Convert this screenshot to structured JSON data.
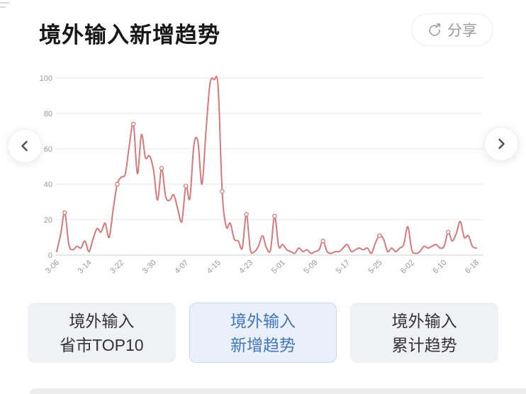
{
  "page": {
    "title": "境外输入新增趋势",
    "share_label": "分享"
  },
  "icons": {
    "share": "circular-arrow-share-icon",
    "prev": "chevron-left-icon",
    "next": "chevron-right-icon"
  },
  "colors": {
    "line": "#d4797c",
    "title_text": "#171717",
    "share_text": "#9b9b9b",
    "grid_line": "#e9e9e9",
    "axis_line": "#cccccc",
    "axis_label": "#999999",
    "tab_bg": "#eff1f4",
    "tab_text": "#333333",
    "selected_tab_bg": "#e9effb",
    "selected_tab_text": "#4377b8",
    "selected_tab_border": "#c9d7f0"
  },
  "chart_data": {
    "type": "line",
    "title": "境外输入新增趋势",
    "ylim": [
      0,
      100
    ],
    "y_ticks": [
      0,
      20,
      40,
      60,
      80,
      100
    ],
    "x_tick_every": 8,
    "x_tick_labels": [
      "3-06",
      "3-14",
      "3-22",
      "3-30",
      "4-07",
      "4-15",
      "4-23",
      "5-01",
      "5-09",
      "5-17",
      "5-25",
      "6-02",
      "6-10",
      "6-18"
    ],
    "grid": true,
    "legend": "none",
    "line_color": "#d4797c",
    "marker_indices": [
      2,
      15,
      19,
      26,
      32,
      41,
      47,
      54,
      66,
      80,
      97
    ],
    "x": [
      "3-06",
      "3-07",
      "3-08",
      "3-09",
      "3-10",
      "3-11",
      "3-12",
      "3-13",
      "3-14",
      "3-15",
      "3-16",
      "3-17",
      "3-18",
      "3-19",
      "3-20",
      "3-21",
      "3-22",
      "3-23",
      "3-24",
      "3-25",
      "3-26",
      "3-27",
      "3-28",
      "3-29",
      "3-30",
      "3-31",
      "4-01",
      "4-02",
      "4-03",
      "4-04",
      "4-05",
      "4-06",
      "4-07",
      "4-08",
      "4-09",
      "4-10",
      "4-11",
      "4-12",
      "4-13",
      "4-14",
      "4-15",
      "4-16",
      "4-17",
      "4-18",
      "4-19",
      "4-20",
      "4-21",
      "4-22",
      "4-23",
      "4-24",
      "4-25",
      "4-26",
      "4-27",
      "4-28",
      "4-29",
      "4-30",
      "5-01",
      "5-02",
      "5-03",
      "5-04",
      "5-05",
      "5-06",
      "5-07",
      "5-08",
      "5-09",
      "5-10",
      "5-11",
      "5-12",
      "5-13",
      "5-14",
      "5-15",
      "5-16",
      "5-17",
      "5-18",
      "5-19",
      "5-20",
      "5-21",
      "5-22",
      "5-23",
      "5-24",
      "5-25",
      "5-26",
      "5-27",
      "5-28",
      "5-29",
      "5-30",
      "5-31",
      "6-01",
      "6-02",
      "6-03",
      "6-04",
      "6-05",
      "6-06",
      "6-07",
      "6-08",
      "6-09",
      "6-10",
      "6-11",
      "6-12",
      "6-13",
      "6-14",
      "6-15",
      "6-16",
      "6-17",
      "6-18"
    ],
    "values": [
      2,
      12,
      24,
      6,
      3,
      5,
      4,
      8,
      2,
      9,
      15,
      13,
      18,
      10,
      26,
      40,
      44,
      46,
      62,
      74,
      46,
      68,
      55,
      56,
      48,
      31,
      49,
      33,
      31,
      34,
      26,
      19,
      39,
      32,
      62,
      64,
      40,
      70,
      97,
      99,
      95,
      36,
      16,
      18,
      9,
      8,
      4,
      23,
      3,
      2,
      5,
      11,
      4,
      3,
      22,
      5,
      6,
      3,
      2,
      1,
      4,
      2,
      3,
      1,
      2,
      3,
      8,
      2,
      1,
      2,
      2,
      4,
      6,
      2,
      3,
      4,
      3,
      4,
      1,
      7,
      11,
      9,
      2,
      4,
      2,
      4,
      6,
      16,
      3,
      1,
      2,
      5,
      4,
      5,
      6,
      4,
      5,
      13,
      8,
      12,
      19,
      10,
      11,
      5,
      4
    ]
  },
  "tabs": [
    {
      "line1": "境外输入",
      "line2": "省市TOP10",
      "selected": false
    },
    {
      "line1": "境外输入",
      "line2": "新增趋势",
      "selected": true
    },
    {
      "line1": "境外输入",
      "line2": "累计趋势",
      "selected": false
    }
  ]
}
